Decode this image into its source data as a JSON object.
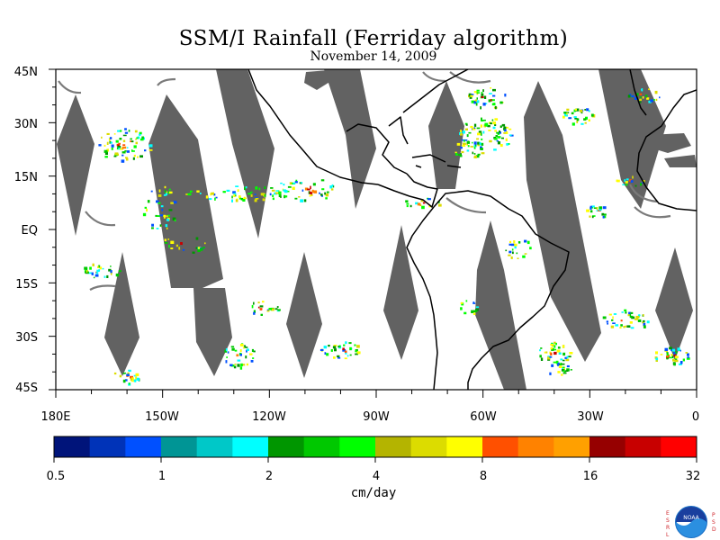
{
  "title": "SSM/I Rainfall (Ferriday algorithm)",
  "subtitle": "November 14, 2009",
  "y_axis_labels": [
    "45N",
    "30N",
    "15N",
    "EQ",
    "15S",
    "30S",
    "45S"
  ],
  "x_axis_labels": [
    "180E",
    "150W",
    "120W",
    "90W",
    "60W",
    "30W",
    "0"
  ],
  "colorbar": {
    "colors": [
      "#00147a",
      "#0033b8",
      "#0050ff",
      "#009595",
      "#00c8c8",
      "#00ffff",
      "#009600",
      "#00c800",
      "#00ff00",
      "#b4b400",
      "#dcdc00",
      "#ffff00",
      "#ff5000",
      "#ff8200",
      "#ffa000",
      "#960000",
      "#c80000",
      "#ff0000"
    ],
    "tick_labels": [
      "0.5",
      "1",
      "2",
      "4",
      "8",
      "16",
      "32"
    ],
    "units": "cm/day"
  },
  "logo": {
    "left_text": "ESRL",
    "right_text": "PSD",
    "center_text": "NOAA"
  },
  "colors": {
    "swath_gap": "#626262",
    "land": "#ffffff",
    "coast": "#000000"
  }
}
